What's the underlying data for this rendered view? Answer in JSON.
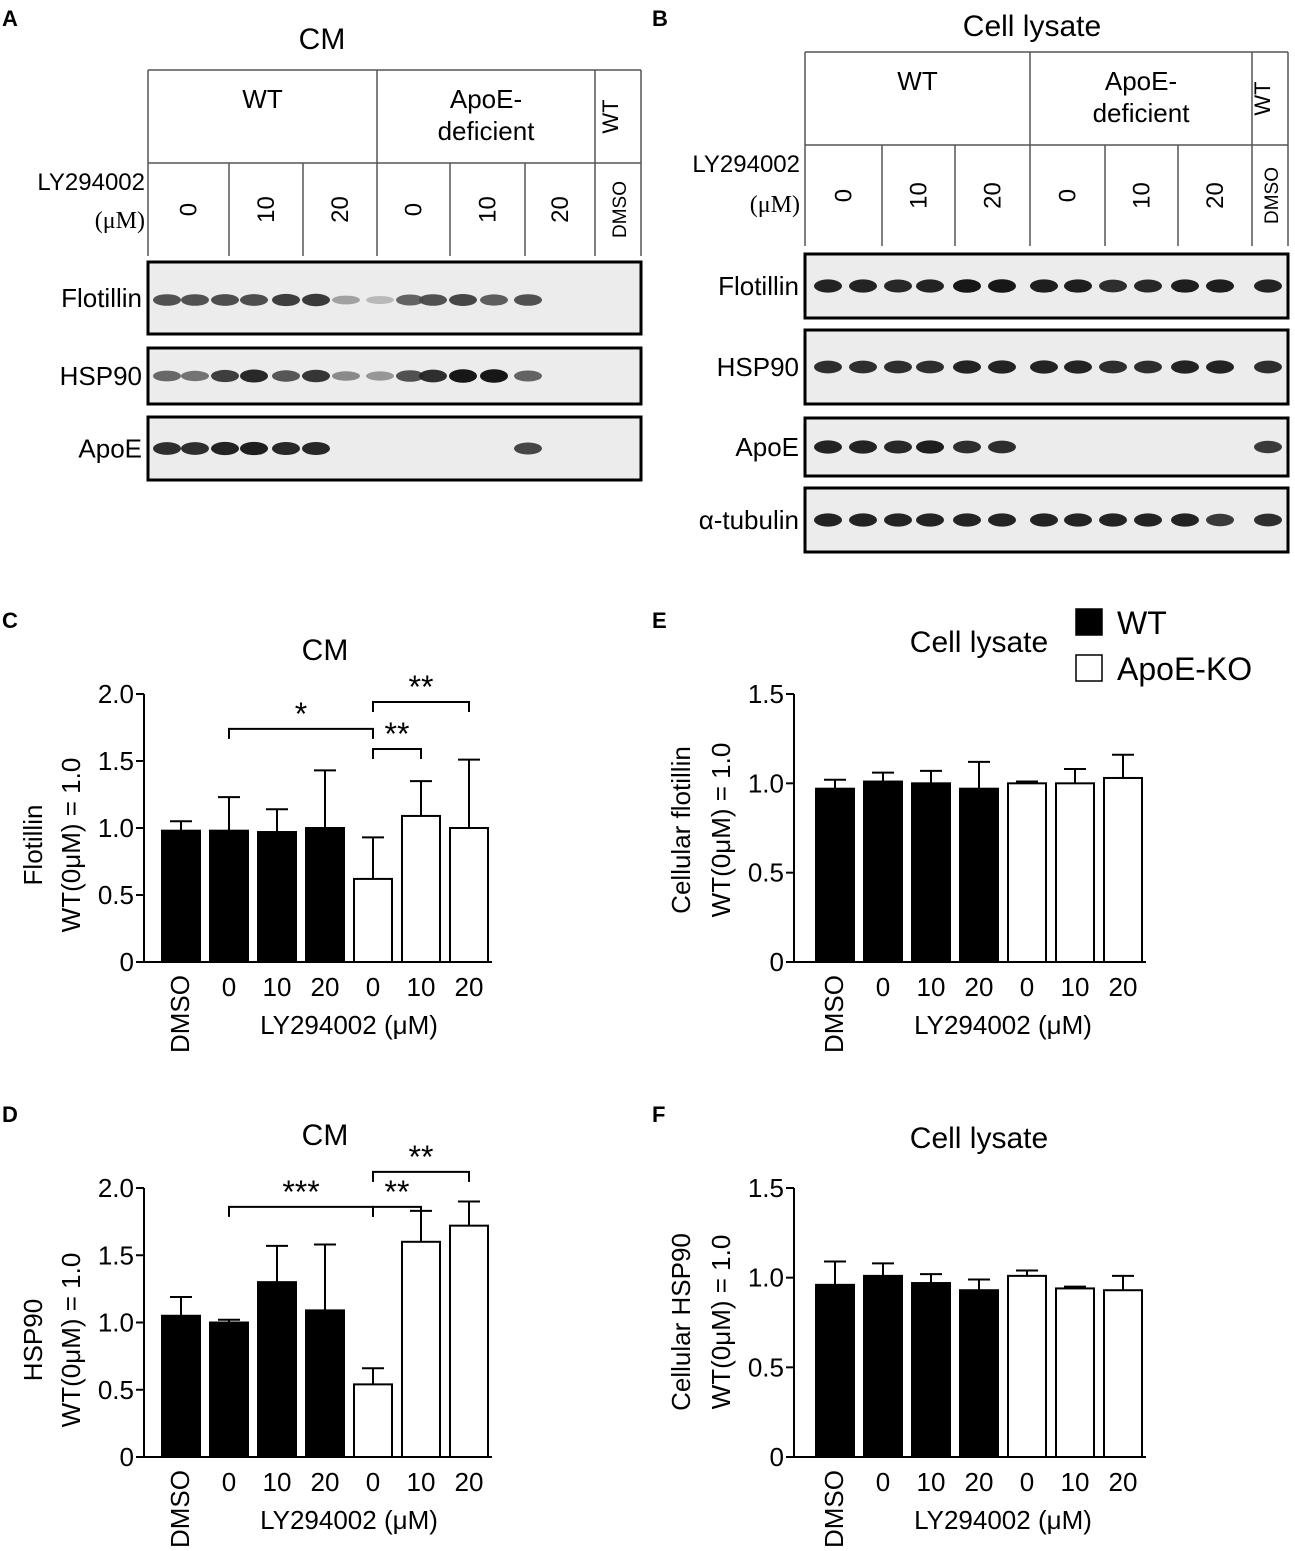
{
  "panel_letters": [
    "A",
    "B",
    "C",
    "D",
    "E",
    "F"
  ],
  "blots": [
    {
      "id": "A",
      "title": "CM",
      "groups": [
        "WT",
        "ApoE-\ndeficient",
        "WT"
      ],
      "treatment_label": "LY294002",
      "treatment_unit": "(μM)",
      "lanes": [
        "0",
        "10",
        "20",
        "0",
        "10",
        "20",
        "DMSO"
      ],
      "proteins": [
        "Flotillin",
        "HSP90",
        "ApoE"
      ],
      "intensities": {
        "Flotillin": [
          0.7,
          0.7,
          0.72,
          0.72,
          0.78,
          0.8,
          0.35,
          0.25,
          0.62,
          0.7,
          0.75,
          0.65,
          0.7
        ],
        "HSP90": [
          0.6,
          0.55,
          0.78,
          0.88,
          0.68,
          0.82,
          0.45,
          0.4,
          0.7,
          0.85,
          0.95,
          0.95,
          0.62
        ],
        "ApoE": [
          0.85,
          0.85,
          0.9,
          0.92,
          0.88,
          0.88,
          0,
          0,
          0,
          0,
          0,
          0,
          0.75
        ]
      }
    },
    {
      "id": "B",
      "title": "Cell lysate",
      "groups": [
        "WT",
        "ApoE-\ndeficient",
        "WT"
      ],
      "treatment_label": "LY294002",
      "treatment_unit": "(μM)",
      "lanes": [
        "0",
        "10",
        "20",
        "0",
        "10",
        "20",
        "DMSO"
      ],
      "proteins": [
        "Flotillin",
        "HSP90",
        "ApoE",
        "α-tubulin"
      ],
      "intensities": {
        "Flotillin": [
          0.9,
          0.9,
          0.88,
          0.9,
          0.95,
          0.95,
          0.92,
          0.92,
          0.85,
          0.88,
          0.92,
          0.92,
          0.9
        ],
        "HSP90": [
          0.85,
          0.85,
          0.85,
          0.85,
          0.9,
          0.9,
          0.9,
          0.9,
          0.85,
          0.85,
          0.9,
          0.9,
          0.85
        ],
        "ApoE": [
          0.9,
          0.9,
          0.88,
          0.92,
          0.85,
          0.85,
          0,
          0,
          0,
          0,
          0,
          0,
          0.8
        ],
        "α-tubulin": [
          0.9,
          0.9,
          0.9,
          0.9,
          0.9,
          0.9,
          0.9,
          0.9,
          0.9,
          0.9,
          0.9,
          0.8,
          0.85
        ]
      }
    }
  ],
  "legend": [
    {
      "label": "WT",
      "fill": "#000000"
    },
    {
      "label": "ApoE-KO",
      "fill": "#ffffff"
    }
  ],
  "chart_data": [
    {
      "id": "C",
      "type": "bar",
      "title": "CM",
      "ylabel_lines": [
        "Flotillin",
        "WT(0μM) = 1.0"
      ],
      "xlabel": "LY294002 (μM)",
      "categories": [
        "DMSO",
        "0",
        "10",
        "20",
        "0",
        "10",
        "20"
      ],
      "values": [
        0.98,
        0.98,
        0.97,
        1.0,
        0.62,
        1.09,
        1.0
      ],
      "errors": [
        0.07,
        0.25,
        0.17,
        0.43,
        0.31,
        0.26,
        0.51
      ],
      "groups": [
        "WT",
        "WT",
        "WT",
        "WT",
        "ApoE-KO",
        "ApoE-KO",
        "ApoE-KO"
      ],
      "ylim": [
        0,
        2.0
      ],
      "yticks": [
        "0",
        "0.5",
        "1.0",
        "1.5",
        "2.0"
      ],
      "significance": [
        {
          "from": 1,
          "to": 4,
          "label": "*",
          "level": 1.74
        },
        {
          "from": 4,
          "to": 5,
          "label": "**",
          "level": 1.59
        },
        {
          "from": 4,
          "to": 6,
          "label": "**",
          "level": 1.94
        }
      ]
    },
    {
      "id": "D",
      "type": "bar",
      "title": "CM",
      "ylabel_lines": [
        "HSP90",
        "WT(0μM) = 1.0"
      ],
      "xlabel": "LY294002 (μM)",
      "categories": [
        "DMSO",
        "0",
        "10",
        "20",
        "0",
        "10",
        "20"
      ],
      "values": [
        1.05,
        1.0,
        1.3,
        1.09,
        0.54,
        1.6,
        1.72
      ],
      "errors": [
        0.14,
        0.02,
        0.27,
        0.49,
        0.12,
        0.23,
        0.18
      ],
      "groups": [
        "WT",
        "WT",
        "WT",
        "WT",
        "ApoE-KO",
        "ApoE-KO",
        "ApoE-KO"
      ],
      "ylim": [
        0,
        2.0
      ],
      "yticks": [
        "0",
        "0.5",
        "1.0",
        "1.5",
        "2.0"
      ],
      "significance": [
        {
          "from": 1,
          "to": 4,
          "label": "***",
          "level": 1.86
        },
        {
          "from": 4,
          "to": 5,
          "label": "**",
          "level": 1.86
        },
        {
          "from": 4,
          "to": 6,
          "label": "**",
          "level": 2.12
        }
      ]
    },
    {
      "id": "E",
      "type": "bar",
      "title": "Cell lysate",
      "ylabel_lines": [
        "Cellular flotillin",
        "WT(0μM) = 1.0"
      ],
      "xlabel": "LY294002 (μM)",
      "categories": [
        "DMSO",
        "0",
        "10",
        "20",
        "0",
        "10",
        "20"
      ],
      "values": [
        0.97,
        1.01,
        1.0,
        0.97,
        1.0,
        1.0,
        1.03
      ],
      "errors": [
        0.05,
        0.05,
        0.07,
        0.15,
        0.01,
        0.08,
        0.13
      ],
      "groups": [
        "WT",
        "WT",
        "WT",
        "WT",
        "ApoE-KO",
        "ApoE-KO",
        "ApoE-KO"
      ],
      "ylim": [
        0,
        1.5
      ],
      "yticks": [
        "0",
        "0.5",
        "1.0",
        "1.5"
      ],
      "significance": []
    },
    {
      "id": "F",
      "type": "bar",
      "title": "Cell lysate",
      "ylabel_lines": [
        "Cellular HSP90",
        "WT(0μM) = 1.0"
      ],
      "xlabel": "LY294002 (μM)",
      "categories": [
        "DMSO",
        "0",
        "10",
        "20",
        "0",
        "10",
        "20"
      ],
      "values": [
        0.96,
        1.01,
        0.97,
        0.93,
        1.01,
        0.94,
        0.93
      ],
      "errors": [
        0.13,
        0.07,
        0.05,
        0.06,
        0.03,
        0.01,
        0.08
      ],
      "groups": [
        "WT",
        "WT",
        "WT",
        "WT",
        "ApoE-KO",
        "ApoE-KO",
        "ApoE-KO"
      ],
      "ylim": [
        0,
        1.5
      ],
      "yticks": [
        "0",
        "0.5",
        "1.0",
        "1.5"
      ],
      "significance": []
    }
  ]
}
